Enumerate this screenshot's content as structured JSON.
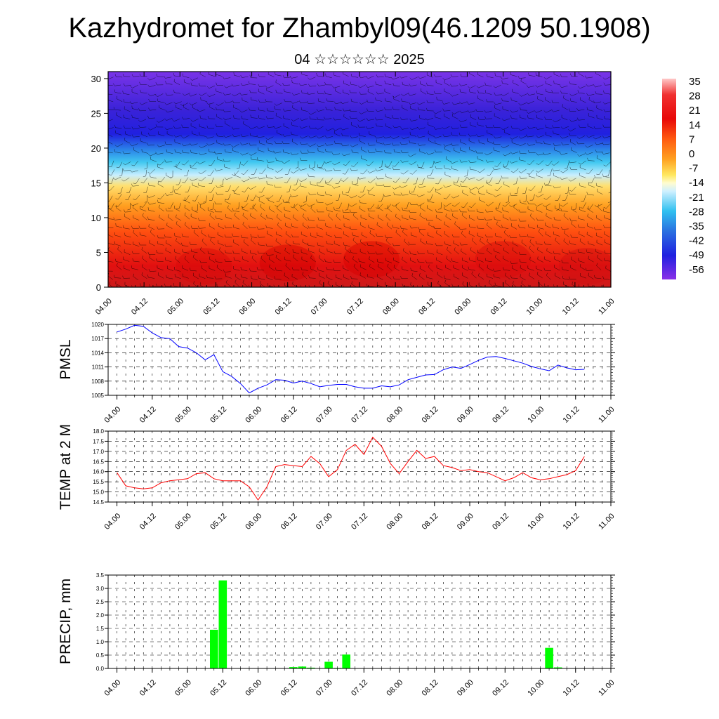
{
  "page": {
    "title": "Kazhydromet for Zhambyl09(46.1209 50.1908)",
    "subtitle": "04 ☆☆☆☆☆☆ 2025"
  },
  "colors": {
    "pmsl_line": "#0000ff",
    "temp_line": "#ff0000",
    "precip_bar": "#00ff00",
    "grid": "#000000",
    "wind_barb": "#000000"
  },
  "chart_data": [
    {
      "type": "heatmap",
      "title": "",
      "x_tick_labels": [
        "04.00",
        "04.12",
        "05.00",
        "05.12",
        "06.00",
        "06.12",
        "07.00",
        "07.12",
        "08.00",
        "08.12",
        "09.00",
        "09.12",
        "10.00",
        "10.12",
        "11.00"
      ],
      "xlim": [
        0,
        168
      ],
      "y_ticks": [
        0,
        5,
        10,
        15,
        20,
        25,
        30
      ],
      "ylim": [
        0,
        31
      ],
      "colorbar_labels": [
        "35",
        "28",
        "21",
        "14",
        "7",
        "0",
        "-7",
        "-14",
        "-21",
        "-28",
        "-35",
        "-42",
        "-49",
        "-56"
      ],
      "value_profile": {
        "levels": [
          0,
          2,
          4,
          6,
          8,
          10,
          12,
          14,
          16,
          17,
          18,
          19,
          20,
          21,
          22,
          23,
          24,
          25,
          26,
          27,
          28,
          29,
          31
        ],
        "values": [
          22,
          24,
          25,
          24,
          20,
          14,
          8,
          0,
          -10,
          -16,
          -22,
          -30,
          -38,
          -46,
          -54,
          -58,
          -56,
          -52,
          -54,
          -56,
          -58,
          -58,
          -58
        ]
      },
      "overlay": "wind barbs"
    },
    {
      "type": "line",
      "ylabel": "PMSL",
      "x_tick_labels": [
        "04.00",
        "04.12",
        "05.00",
        "05.12",
        "06.00",
        "06.12",
        "07.00",
        "07.12",
        "08.00",
        "08.12",
        "09.00",
        "09.12",
        "10.00",
        "10.12",
        "11.00"
      ],
      "xlim": [
        -3,
        168
      ],
      "ylim": [
        1005,
        1020
      ],
      "y_ticks": [
        1005,
        1008,
        1011,
        1014,
        1017,
        1020
      ],
      "x": [
        0,
        3,
        6,
        9,
        12,
        15,
        18,
        21,
        24,
        27,
        30,
        33,
        36,
        39,
        42,
        45,
        48,
        51,
        54,
        57,
        60,
        63,
        66,
        69,
        72,
        75,
        78,
        81,
        84,
        87,
        90,
        93,
        96,
        99,
        102,
        105,
        108,
        111,
        114,
        117,
        120,
        123,
        126,
        129,
        132,
        135,
        138,
        141,
        144,
        147,
        150,
        153,
        156,
        159
      ],
      "values": [
        1018.4,
        1019.0,
        1019.8,
        1019.6,
        1018.2,
        1017.2,
        1017.0,
        1015.3,
        1015.0,
        1014.0,
        1012.5,
        1013.6,
        1010.0,
        1009.0,
        1007.5,
        1005.5,
        1006.5,
        1007.2,
        1008.3,
        1008.2,
        1007.6,
        1008.0,
        1007.5,
        1006.8,
        1007.1,
        1007.3,
        1007.3,
        1006.8,
        1006.5,
        1006.5,
        1007.0,
        1006.8,
        1007.2,
        1008.3,
        1008.8,
        1009.3,
        1009.4,
        1010.4,
        1011.0,
        1010.7,
        1011.5,
        1012.4,
        1013.1,
        1013.2,
        1012.8,
        1012.3,
        1011.8,
        1011.1,
        1010.6,
        1010.2,
        1011.4,
        1010.8,
        1010.4,
        1010.5
      ]
    },
    {
      "type": "line",
      "ylabel": "TEMP at 2 M",
      "x_tick_labels": [
        "04.00",
        "04.12",
        "05.00",
        "05.12",
        "06.00",
        "06.12",
        "07.00",
        "07.12",
        "08.00",
        "08.12",
        "09.00",
        "09.12",
        "10.00",
        "10.12",
        "11.00"
      ],
      "xlim": [
        -3,
        168
      ],
      "ylim": [
        14.5,
        18.0
      ],
      "y_ticks": [
        14.5,
        15.0,
        15.5,
        16.0,
        16.5,
        17.0,
        17.5,
        18.0
      ],
      "x": [
        0,
        3,
        6,
        9,
        12,
        15,
        18,
        21,
        24,
        27,
        30,
        33,
        36,
        39,
        42,
        45,
        48,
        51,
        54,
        57,
        60,
        63,
        66,
        69,
        72,
        75,
        78,
        81,
        84,
        87,
        90,
        93,
        96,
        99,
        102,
        105,
        108,
        111,
        114,
        117,
        120,
        123,
        126,
        129,
        132,
        135,
        138,
        141,
        144,
        147,
        150,
        153,
        156,
        159
      ],
      "values": [
        15.95,
        15.3,
        15.2,
        15.15,
        15.2,
        15.45,
        15.55,
        15.6,
        15.65,
        15.9,
        15.95,
        15.65,
        15.55,
        15.55,
        15.55,
        15.25,
        14.6,
        15.25,
        16.25,
        16.35,
        16.3,
        16.25,
        16.75,
        16.4,
        15.75,
        16.1,
        17.05,
        17.35,
        16.85,
        17.7,
        17.25,
        16.4,
        15.9,
        16.5,
        17.05,
        16.65,
        16.75,
        16.3,
        16.2,
        16.05,
        16.1,
        16.0,
        15.95,
        15.75,
        15.55,
        15.7,
        15.95,
        15.7,
        15.6,
        15.65,
        15.75,
        15.85,
        16.05,
        16.75
      ]
    },
    {
      "type": "bar",
      "ylabel": "PRECIP, mm",
      "x_tick_labels": [
        "04.00",
        "04.12",
        "05.00",
        "05.12",
        "06.00",
        "06.12",
        "07.00",
        "07.12",
        "08.00",
        "08.12",
        "09.00",
        "09.12",
        "10.00",
        "10.12",
        "11.00"
      ],
      "xlim": [
        -3,
        168
      ],
      "ylim": [
        0,
        3.5
      ],
      "y_ticks": [
        0.0,
        0.5,
        1.0,
        1.5,
        2.0,
        2.5,
        3.0,
        3.5
      ],
      "x": [
        33,
        36,
        60,
        63,
        66,
        72,
        75,
        78,
        147,
        150
      ],
      "values": [
        1.45,
        3.3,
        0.05,
        0.07,
        0.03,
        0.25,
        0.02,
        0.52,
        0.77,
        0.04
      ]
    }
  ]
}
